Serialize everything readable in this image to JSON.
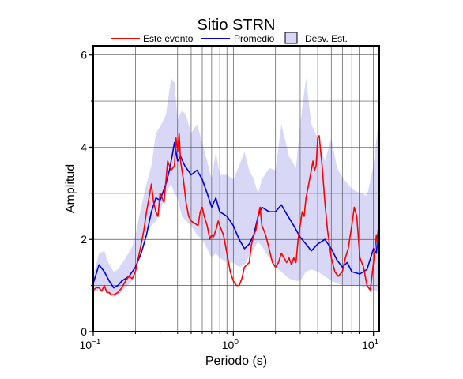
{
  "chart_data": {
    "type": "line",
    "title": "Sitio STRN",
    "xlabel": "Periodo (s)",
    "ylabel": "Amplitud",
    "xscale": "log",
    "xlim": [
      0.1,
      11
    ],
    "ylim": [
      0,
      6.2
    ],
    "grid": true,
    "legend_position": "top",
    "x_ticks": [
      {
        "value": 0.1,
        "base": "10",
        "exp": "−1"
      },
      {
        "value": 1,
        "base": "10",
        "exp": "0"
      },
      {
        "value": 10,
        "base": "10",
        "exp": "1"
      }
    ],
    "y_ticks": [
      0,
      2,
      4,
      6
    ],
    "legend": {
      "items": [
        {
          "label": "Este evento",
          "kind": "line",
          "color": "#ff0000"
        },
        {
          "label": "Promedio",
          "kind": "line",
          "color": "#0000e0"
        },
        {
          "label": "Desv. Est.",
          "kind": "box",
          "color": "#d8d8f6"
        }
      ]
    },
    "std_band": {
      "name": "Desv. Est.",
      "color": "#d8d8f6",
      "x": [
        0.1,
        0.11,
        0.12,
        0.13,
        0.14,
        0.15,
        0.17,
        0.19,
        0.2,
        0.22,
        0.24,
        0.26,
        0.28,
        0.3,
        0.33,
        0.36,
        0.38,
        0.4,
        0.43,
        0.46,
        0.5,
        0.55,
        0.6,
        0.65,
        0.7,
        0.75,
        0.8,
        0.9,
        1.0,
        1.1,
        1.2,
        1.3,
        1.4,
        1.5,
        1.6,
        1.8,
        2.0,
        2.2,
        2.5,
        2.8,
        3.0,
        3.3,
        3.6,
        4.0,
        4.5,
        5.0,
        5.5,
        6.0,
        7.0,
        8.0,
        9.0,
        10.0,
        11.0
      ],
      "upper": [
        1.2,
        1.7,
        1.75,
        1.45,
        1.3,
        1.35,
        1.6,
        1.85,
        2.1,
        2.7,
        3.2,
        3.6,
        4.3,
        4.45,
        4.7,
        5.5,
        5.4,
        4.6,
        4.8,
        4.7,
        4.3,
        4.5,
        4.1,
        3.7,
        3.3,
        3.9,
        3.4,
        3.4,
        3.3,
        3.6,
        3.9,
        3.5,
        3.3,
        3.0,
        3.3,
        3.55,
        3.5,
        4.5,
        3.8,
        3.55,
        4.5,
        5.5,
        4.5,
        4.2,
        3.7,
        4.2,
        3.55,
        3.35,
        3.1,
        3.0,
        2.95,
        3.6,
        4.7
      ],
      "lower": [
        0.85,
        0.9,
        0.9,
        0.8,
        0.75,
        0.8,
        0.95,
        1.1,
        1.3,
        1.8,
        2.2,
        2.3,
        2.4,
        2.6,
        3.0,
        3.2,
        3.0,
        2.9,
        2.5,
        2.4,
        2.3,
        2.1,
        2.0,
        1.8,
        1.6,
        1.7,
        1.6,
        1.5,
        1.5,
        1.4,
        1.45,
        1.65,
        1.8,
        1.95,
        1.85,
        1.6,
        1.4,
        1.3,
        1.15,
        1.1,
        1.1,
        1.3,
        1.35,
        1.3,
        1.2,
        1.1,
        1.05,
        1.0,
        1.0,
        1.0,
        0.95,
        0.9,
        0.85
      ]
    },
    "series": [
      {
        "name": "Promedio",
        "color": "#0000e0",
        "x": [
          0.1,
          0.11,
          0.12,
          0.13,
          0.14,
          0.15,
          0.16,
          0.18,
          0.2,
          0.22,
          0.24,
          0.26,
          0.28,
          0.3,
          0.33,
          0.35,
          0.37,
          0.38,
          0.4,
          0.42,
          0.45,
          0.5,
          0.55,
          0.6,
          0.65,
          0.7,
          0.75,
          0.8,
          0.85,
          0.9,
          1.0,
          1.1,
          1.2,
          1.3,
          1.4,
          1.5,
          1.6,
          1.8,
          2.0,
          2.2,
          2.4,
          2.7,
          3.0,
          3.3,
          3.6,
          4.0,
          4.5,
          5.0,
          5.5,
          6.0,
          6.5,
          7.0,
          8.0,
          9.0,
          10.0,
          10.5,
          11.0
        ],
        "y": [
          1.05,
          1.45,
          1.3,
          1.1,
          0.95,
          1.0,
          1.1,
          1.2,
          1.4,
          1.7,
          2.1,
          2.6,
          2.9,
          2.85,
          3.2,
          3.5,
          3.9,
          4.1,
          3.7,
          3.8,
          3.6,
          3.4,
          3.5,
          3.3,
          3.0,
          2.7,
          2.9,
          2.6,
          2.55,
          2.5,
          2.3,
          2.0,
          1.8,
          1.9,
          2.1,
          2.5,
          2.7,
          2.6,
          2.6,
          2.75,
          2.55,
          2.3,
          2.05,
          1.9,
          1.75,
          1.9,
          2.0,
          1.8,
          1.55,
          1.4,
          1.5,
          1.3,
          1.25,
          1.35,
          1.8,
          1.7,
          2.5
        ]
      },
      {
        "name": "Este evento",
        "color": "#ff0000",
        "x": [
          0.1,
          0.105,
          0.11,
          0.115,
          0.12,
          0.125,
          0.13,
          0.135,
          0.14,
          0.15,
          0.16,
          0.17,
          0.18,
          0.19,
          0.2,
          0.21,
          0.22,
          0.23,
          0.24,
          0.25,
          0.26,
          0.27,
          0.28,
          0.29,
          0.3,
          0.32,
          0.34,
          0.36,
          0.38,
          0.39,
          0.4,
          0.41,
          0.42,
          0.44,
          0.46,
          0.48,
          0.5,
          0.53,
          0.56,
          0.58,
          0.6,
          0.62,
          0.65,
          0.68,
          0.7,
          0.72,
          0.75,
          0.78,
          0.8,
          0.85,
          0.9,
          0.95,
          1.0,
          1.05,
          1.1,
          1.15,
          1.2,
          1.3,
          1.35,
          1.4,
          1.45,
          1.5,
          1.55,
          1.6,
          1.7,
          1.8,
          1.9,
          2.0,
          2.1,
          2.2,
          2.3,
          2.4,
          2.5,
          2.6,
          2.7,
          2.8,
          2.9,
          3.0,
          3.1,
          3.2,
          3.3,
          3.4,
          3.5,
          3.6,
          3.7,
          3.8,
          3.9,
          4.0,
          4.1,
          4.2,
          4.3,
          4.5,
          4.7,
          5.0,
          5.3,
          5.6,
          6.0,
          6.3,
          6.6,
          7.0,
          7.3,
          7.6,
          8.0,
          8.5,
          9.0,
          9.5,
          10.0,
          10.5,
          11.0
        ],
        "y": [
          0.9,
          0.95,
          0.95,
          0.88,
          1.0,
          0.85,
          0.85,
          0.8,
          0.8,
          0.85,
          0.95,
          1.1,
          1.2,
          1.15,
          1.3,
          1.6,
          1.9,
          2.2,
          2.6,
          2.9,
          3.2,
          2.8,
          2.6,
          2.5,
          3.0,
          2.8,
          3.7,
          3.5,
          3.6,
          4.2,
          3.9,
          4.3,
          3.7,
          3.3,
          2.8,
          2.5,
          2.4,
          2.35,
          2.3,
          2.6,
          2.7,
          2.5,
          2.3,
          2.0,
          2.1,
          2.05,
          2.2,
          2.4,
          2.3,
          2.1,
          1.7,
          1.3,
          1.1,
          1.0,
          1.0,
          1.15,
          1.4,
          1.5,
          1.9,
          2.1,
          2.2,
          2.5,
          2.7,
          2.3,
          2.1,
          1.8,
          1.5,
          1.4,
          1.5,
          1.7,
          1.6,
          1.5,
          1.6,
          1.45,
          1.6,
          1.5,
          2.0,
          2.3,
          2.6,
          2.5,
          2.9,
          3.1,
          3.3,
          3.5,
          3.7,
          3.5,
          3.6,
          4.2,
          4.25,
          3.9,
          3.6,
          2.8,
          2.2,
          1.6,
          1.3,
          1.2,
          1.3,
          1.6,
          1.8,
          2.3,
          2.7,
          2.5,
          1.6,
          1.4,
          1.0,
          0.9,
          1.5,
          2.1,
          1.6
        ]
      }
    ]
  }
}
